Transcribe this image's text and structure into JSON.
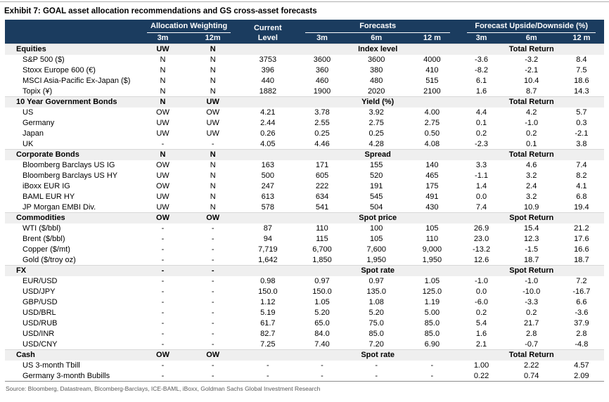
{
  "title": "Exhibit 7: GOAL asset allocation recommendations and GS cross-asset forecasts",
  "source": "Source: Bloomberg, Datastream, Blcomberg-Barclays, ICE-BAML, iBoxx, Goldman Sachs Global Investment Research",
  "colors": {
    "header_bg": "#1b3c5f",
    "header_text": "#ffffff",
    "section_bg": "#efefef"
  },
  "header": {
    "group_alloc": "Allocation Weighting",
    "current_line1": "Current",
    "current_line2": "Level",
    "group_forecasts": "Forecasts",
    "group_upside": "Forecast Upside/Downside (%)",
    "sub_alloc": [
      "3m",
      "12m"
    ],
    "sub_forecast": [
      "3m",
      "6m",
      "12 m"
    ],
    "sub_upside": [
      "3m",
      "6m",
      "12 m"
    ]
  },
  "sections": [
    {
      "label": "Equities",
      "w3m": "UW",
      "w12m": "N",
      "mid_label": "Index level",
      "right_label": "Total Return",
      "rows": [
        [
          "S&P 500 ($)",
          "N",
          "N",
          "3753",
          "3600",
          "3600",
          "4000",
          "-3.6",
          "-3.2",
          "8.4"
        ],
        [
          "Stoxx Europe 600 (€)",
          "N",
          "N",
          "396",
          "360",
          "380",
          "410",
          "-8.2",
          "-2.1",
          "7.5"
        ],
        [
          "MSCI Asia-Pacific Ex-Japan ($)",
          "N",
          "N",
          "440",
          "460",
          "480",
          "515",
          "6.1",
          "10.4",
          "18.6"
        ],
        [
          "Topix (¥)",
          "N",
          "N",
          "1882",
          "1900",
          "2020",
          "2100",
          "1.6",
          "8.7",
          "14.3"
        ]
      ]
    },
    {
      "label": "10 Year Government Bonds",
      "w3m": "N",
      "w12m": "UW",
      "mid_label": "Yield (%)",
      "right_label": "Total Return",
      "rows": [
        [
          "US",
          "OW",
          "OW",
          "4.21",
          "3.78",
          "3.92",
          "4.00",
          "4.4",
          "4.2",
          "5.7"
        ],
        [
          "Germany",
          "UW",
          "UW",
          "2.44",
          "2.55",
          "2.75",
          "2.75",
          "0.1",
          "-1.0",
          "0.3"
        ],
        [
          "Japan",
          "UW",
          "UW",
          "0.26",
          "0.25",
          "0.25",
          "0.50",
          "0.2",
          "0.2",
          "-2.1"
        ],
        [
          "UK",
          "-",
          "-",
          "4.05",
          "4.46",
          "4.28",
          "4.08",
          "-2.3",
          "0.1",
          "3.8"
        ]
      ]
    },
    {
      "label": "Corporate Bonds",
      "w3m": "N",
      "w12m": "N",
      "mid_label": "Spread",
      "right_label": "Total Return",
      "rows": [
        [
          "Bloomberg Barclays US IG",
          "OW",
          "N",
          "163",
          "171",
          "155",
          "140",
          "3.3",
          "4.6",
          "7.4"
        ],
        [
          "Bloomberg Barclays US HY",
          "UW",
          "N",
          "500",
          "605",
          "520",
          "465",
          "-1.1",
          "3.2",
          "8.2"
        ],
        [
          "iBoxx EUR IG",
          "OW",
          "N",
          "247",
          "222",
          "191",
          "175",
          "1.4",
          "2.4",
          "4.1"
        ],
        [
          "BAML EUR HY",
          "UW",
          "N",
          "613",
          "634",
          "545",
          "491",
          "0.0",
          "3.2",
          "6.8"
        ],
        [
          "JP Morgan EMBI Div.",
          "UW",
          "N",
          "578",
          "541",
          "504",
          "430",
          "7.4",
          "10.9",
          "19.4"
        ]
      ]
    },
    {
      "label": "Commodities",
      "w3m": "OW",
      "w12m": "OW",
      "mid_label": "Spot price",
      "right_label": "Spot Return",
      "rows": [
        [
          "WTI  ($/bbl)",
          "-",
          "-",
          "87",
          "110",
          "100",
          "105",
          "26.9",
          "15.4",
          "21.2"
        ],
        [
          "Brent ($/bbl)",
          "-",
          "-",
          "94",
          "115",
          "105",
          "110",
          "23.0",
          "12.3",
          "17.6"
        ],
        [
          "Copper ($/mt)",
          "-",
          "-",
          "7,719",
          "6,700",
          "7,600",
          "9,000",
          "-13.2",
          "-1.5",
          "16.6"
        ],
        [
          "Gold ($/troy oz)",
          "-",
          "-",
          "1,642",
          "1,850",
          "1,950",
          "1,950",
          "12.6",
          "18.7",
          "18.7"
        ]
      ]
    },
    {
      "label": "FX",
      "w3m": "-",
      "w12m": "-",
      "mid_label": "Spot rate",
      "right_label": "Spot Return",
      "rows": [
        [
          "EUR/USD",
          "-",
          "-",
          "0.98",
          "0.97",
          "0.97",
          "1.05",
          "-1.0",
          "-1.0",
          "7.2"
        ],
        [
          "USD/JPY",
          "-",
          "-",
          "150.0",
          "150.0",
          "135.0",
          "125.0",
          "0.0",
          "-10.0",
          "-16.7"
        ],
        [
          "GBP/USD",
          "-",
          "-",
          "1.12",
          "1.05",
          "1.08",
          "1.19",
          "-6.0",
          "-3.3",
          "6.6"
        ],
        [
          "USD/BRL",
          "-",
          "-",
          "5.19",
          "5.20",
          "5.20",
          "5.00",
          "0.2",
          "0.2",
          "-3.6"
        ],
        [
          "USD/RUB",
          "-",
          "-",
          "61.7",
          "65.0",
          "75.0",
          "85.0",
          "5.4",
          "21.7",
          "37.9"
        ],
        [
          "USD/INR",
          "-",
          "-",
          "82.7",
          "84.0",
          "85.0",
          "85.0",
          "1.6",
          "2.8",
          "2.8"
        ],
        [
          "USD/CNY",
          "-",
          "-",
          "7.25",
          "7.40",
          "7.20",
          "6.90",
          "2.1",
          "-0.7",
          "-4.8"
        ]
      ]
    },
    {
      "label": "Cash",
      "w3m": "OW",
      "w12m": "OW",
      "mid_label": "Spot rate",
      "right_label": "Total Return",
      "rows": [
        [
          "US 3-month Tbill",
          "-",
          "-",
          "-",
          "-",
          "-",
          "-",
          "1.00",
          "2.22",
          "4.57"
        ],
        [
          "Germany 3-month Bubills",
          "-",
          "-",
          "-",
          "-",
          "-",
          "-",
          "0.22",
          "0.74",
          "2.09"
        ]
      ]
    }
  ]
}
